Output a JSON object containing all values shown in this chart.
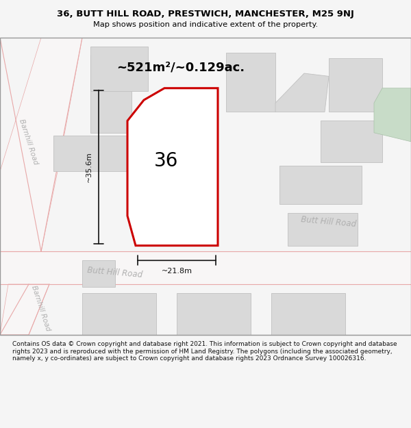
{
  "title_line1": "36, BUTT HILL ROAD, PRESTWICH, MANCHESTER, M25 9NJ",
  "title_line2": "Map shows position and indicative extent of the property.",
  "area_text": "~521m²/~0.129ac.",
  "label_36": "36",
  "dim_width": "~21.8m",
  "dim_height": "~35.6m",
  "road_label_center": "Butt Hill Road",
  "road_label_right": "Butt Hill Road",
  "road_label_barnhill_top": "Barnhill Road",
  "road_label_barnhill_bottom": "Barnhill Road",
  "footer_text": "Contains OS data © Crown copyright and database right 2021. This information is subject to Crown copyright and database rights 2023 and is reproduced with the permission of HM Land Registry. The polygons (including the associated geometry, namely x, y co-ordinates) are subject to Crown copyright and database rights 2023 Ordnance Survey 100026316.",
  "bg_color": "#f5f5f5",
  "map_bg": "#eeecea",
  "building_color": "#d9d9d9",
  "building_edge": "#c0c0c0",
  "road_color": "#f8f6f6",
  "road_outline": "#e8a8a8",
  "red_plot_color": "#cc0000",
  "green_area_color": "#c8dcc8",
  "green_area_edge": "#a8c0a8",
  "footer_bg": "#ffffff",
  "title_bg": "#ffffff",
  "dim_color": "#111111",
  "road_text_color": "#b0b0b0"
}
